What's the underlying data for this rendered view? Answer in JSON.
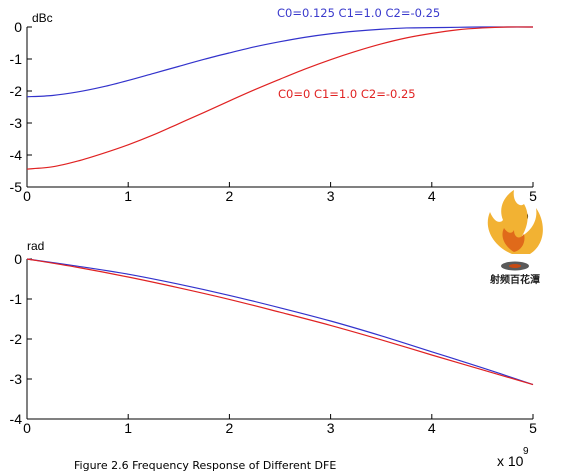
{
  "caption": "Figure 2.6 Frequency Response of Different DFE",
  "watermark": {
    "text": "射频百花潭",
    "colors": [
      "#e06a1a",
      "#f2b233",
      "#c84a12",
      "#5a5a5a"
    ]
  },
  "chart_data": [
    {
      "type": "line",
      "title": "",
      "xlabel": "",
      "ylabel": "dBc",
      "x_multiplier": {
        "base": "x 10",
        "exponent": "9"
      },
      "xlim": [
        0,
        5
      ],
      "ylim": [
        -5,
        0
      ],
      "x_ticks": [
        0,
        1,
        2,
        3,
        4,
        5
      ],
      "y_ticks": [
        0,
        -1,
        -2,
        -3,
        -4,
        -5
      ],
      "x_tick_labels": [
        "0",
        "1",
        "2",
        "3",
        "4",
        "5"
      ],
      "y_tick_labels": [
        "0",
        "-1",
        "-2",
        "-3",
        "-4",
        "-5"
      ],
      "grid": false,
      "series": [
        {
          "name": "C0=0.125 C1=1.0 C2=-0.25",
          "color": "#3333cc",
          "x": [
            0,
            0.25,
            0.5,
            0.75,
            1.0,
            1.25,
            1.5,
            1.75,
            2.0,
            2.25,
            2.5,
            2.75,
            3.0,
            3.25,
            3.5,
            3.75,
            4.0,
            4.25,
            4.5,
            4.75,
            5.0
          ],
          "y": [
            -2.18,
            -2.14,
            -2.03,
            -1.87,
            -1.67,
            -1.45,
            -1.23,
            -1.01,
            -0.81,
            -0.62,
            -0.46,
            -0.32,
            -0.21,
            -0.13,
            -0.07,
            -0.03,
            -0.02,
            -0.01,
            0,
            0,
            0
          ]
        },
        {
          "name": "C0=0 C1=1.0 C2=-0.25",
          "color": "#e02222",
          "x": [
            0,
            0.25,
            0.5,
            0.75,
            1.0,
            1.25,
            1.5,
            1.75,
            2.0,
            2.25,
            2.5,
            2.75,
            3.0,
            3.25,
            3.5,
            3.75,
            4.0,
            4.25,
            4.5,
            4.75,
            5.0
          ],
          "y": [
            -4.44,
            -4.37,
            -4.19,
            -3.95,
            -3.68,
            -3.37,
            -3.02,
            -2.67,
            -2.31,
            -1.96,
            -1.63,
            -1.31,
            -1.02,
            -0.76,
            -0.53,
            -0.34,
            -0.2,
            -0.09,
            -0.03,
            0,
            0
          ]
        }
      ]
    },
    {
      "type": "line",
      "title": "",
      "xlabel": "",
      "ylabel": "rad",
      "x_multiplier": {
        "base": "x 10",
        "exponent": "9"
      },
      "xlim": [
        0,
        5
      ],
      "ylim": [
        -4,
        0
      ],
      "x_ticks": [
        0,
        1,
        2,
        3,
        4,
        5
      ],
      "y_ticks": [
        0,
        -1,
        -2,
        -3,
        -4
      ],
      "x_tick_labels": [
        "0",
        "1",
        "2",
        "3",
        "4",
        "5"
      ],
      "y_tick_labels": [
        "0",
        "-1",
        "-2",
        "-3",
        "-4"
      ],
      "grid": false,
      "series": [
        {
          "name": "C0=0.125 C1=1.0 C2=-0.25",
          "color": "#3333cc",
          "x": [
            0,
            0.5,
            1.0,
            1.5,
            2.0,
            2.5,
            3.0,
            3.5,
            4.0,
            4.5,
            5.0
          ],
          "y": [
            0,
            -0.18,
            -0.38,
            -0.63,
            -0.91,
            -1.22,
            -1.55,
            -1.92,
            -2.32,
            -2.72,
            -3.14
          ]
        },
        {
          "name": "C0=0 C1=1.0 C2=-0.25",
          "color": "#e02222",
          "x": [
            0,
            0.5,
            1.0,
            1.5,
            2.0,
            2.5,
            3.0,
            3.5,
            4.0,
            4.5,
            5.0
          ],
          "y": [
            0,
            -0.21,
            -0.45,
            -0.72,
            -1.01,
            -1.33,
            -1.66,
            -2.02,
            -2.4,
            -2.77,
            -3.14
          ]
        }
      ]
    }
  ]
}
